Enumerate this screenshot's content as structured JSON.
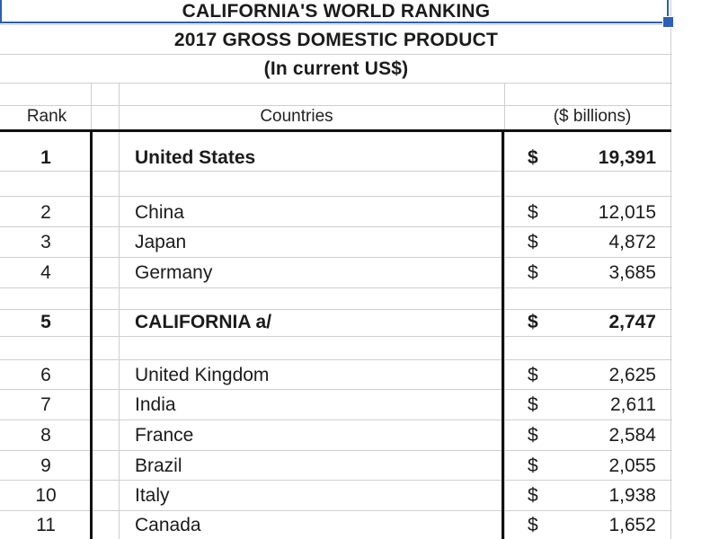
{
  "header": {
    "title_line1": "CALIFORNIA'S WORLD RANKING",
    "title_line2": "2017 GROSS DOMESTIC PRODUCT",
    "title_line3": "(In current US$)"
  },
  "columns": {
    "rank": "Rank",
    "countries": "Countries",
    "value": "($ billions)"
  },
  "rows": [
    {
      "rank": "1",
      "country": "United States",
      "currency": "$",
      "value": "19,391",
      "bold": true
    },
    {
      "rank": "2",
      "country": "China",
      "currency": "$",
      "value": "12,015",
      "bold": false
    },
    {
      "rank": "3",
      "country": "Japan",
      "currency": "$",
      "value": "4,872",
      "bold": false
    },
    {
      "rank": "4",
      "country": "Germany",
      "currency": "$",
      "value": "3,685",
      "bold": false
    },
    {
      "rank": "5",
      "country": "CALIFORNIA a/",
      "currency": "$",
      "value": "2,747",
      "bold": true
    },
    {
      "rank": "6",
      "country": "United Kingdom",
      "currency": "$",
      "value": "2,625",
      "bold": false
    },
    {
      "rank": "7",
      "country": "India",
      "currency": "$",
      "value": "2,611",
      "bold": false
    },
    {
      "rank": "8",
      "country": "France",
      "currency": "$",
      "value": "2,584",
      "bold": false
    },
    {
      "rank": "9",
      "country": "Brazil",
      "currency": "$",
      "value": "2,055",
      "bold": false
    },
    {
      "rank": "10",
      "country": "Italy",
      "currency": "$",
      "value": "1,938",
      "bold": false
    },
    {
      "rank": "11",
      "country": "Canada",
      "currency": "$",
      "value": "1,652",
      "bold": false
    }
  ]
}
